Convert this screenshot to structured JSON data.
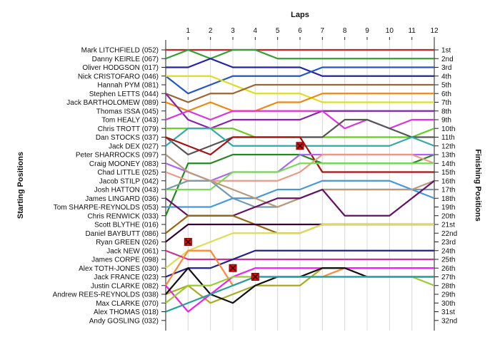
{
  "chart_data": {
    "type": "line",
    "title": "",
    "xlabel": "Laps",
    "ylabel_left": "Starting Positions",
    "ylabel_right": "Finishing Positions",
    "x": [
      1,
      2,
      3,
      4,
      5,
      6,
      7,
      8,
      9,
      10,
      11,
      12
    ],
    "xlim": [
      0,
      12
    ],
    "ylim": [
      1,
      32
    ],
    "y_inverted": true,
    "grid": true,
    "starting_order": [
      "Mark LITCHFIELD (052)",
      "Danny KEIRLE (067)",
      "Oliver HODGSON (017)",
      "Nick CRISTOFARO (046)",
      "Hannah PYM (081)",
      "Stephen LETTS (044)",
      "Jack BARTHOLOMEW (089)",
      "Thomas ISSA (045)",
      "Tom HEALY (043)",
      "Chris TROTT (079)",
      "Dan STOCKS (037)",
      "Jack DEX (027)",
      "Peter SHARROCKS (097)",
      "Craig MOONEY (083)",
      "Chad LITTLE (025)",
      "Jacob STILP (042)",
      "Josh HATTON (043)",
      "James LINGARD (036)",
      "Tom SHARPE-REYNOLDS (053)",
      "Chris RENWICK (033)",
      "Scott BLYTHE (016)",
      "Daniel BAYBUTT (086)",
      "Ryan GREEN (026)",
      "Jack NEW (061)",
      "James CORPE (098)",
      "Alex TOTH-JONES (030)",
      "Jack FRANCE (023)",
      "Justin CLARKE (082)",
      "Andrew REES-REYNOLDS (038)",
      "Max CLARKE (070)",
      "Alex THOMAS (018)",
      "Andy GOSLING (032)"
    ],
    "finishing_labels": [
      "1st",
      "2nd",
      "3rd",
      "4th",
      "5th",
      "6th",
      "7th",
      "8th",
      "9th",
      "10th",
      "11th",
      "12th",
      "13th",
      "14th",
      "15th",
      "16th",
      "17th",
      "18th",
      "19th",
      "20th",
      "21st",
      "22nd",
      "23rd",
      "24th",
      "25th",
      "26th",
      "27th",
      "28th",
      "29th",
      "30th",
      "31st",
      "32nd"
    ],
    "series": [
      {
        "color": "#cc2222",
        "positions": [
          1,
          1,
          1,
          1,
          1,
          1,
          1,
          1,
          1,
          1,
          1,
          1,
          1
        ]
      },
      {
        "color": "#33a033",
        "positions": [
          2,
          1,
          2,
          1,
          1,
          2,
          2,
          2,
          2,
          2,
          2,
          2,
          2
        ]
      },
      {
        "color": "#2222aa",
        "positions": [
          3,
          3,
          2,
          3,
          3,
          3,
          3,
          4,
          4,
          4,
          4,
          4,
          4
        ]
      },
      {
        "color": "#2255cc",
        "positions": [
          4,
          6,
          5,
          4,
          4,
          4,
          4,
          3,
          3,
          3,
          3,
          3,
          3
        ]
      },
      {
        "color": "#dddd22",
        "positions": [
          4,
          4,
          4,
          5,
          6,
          6,
          6,
          7,
          7,
          7,
          7,
          7,
          7
        ]
      },
      {
        "color": "#996633",
        "positions": [
          6,
          7,
          6,
          6,
          5,
          5,
          5,
          5,
          5,
          5,
          5,
          5,
          5
        ]
      },
      {
        "color": "#ee8811",
        "positions": [
          7,
          8,
          7,
          8,
          8,
          7,
          7,
          6,
          6,
          6,
          6,
          6,
          6
        ]
      },
      {
        "color": "#8822aa",
        "positions": [
          6,
          9,
          10,
          9,
          9,
          9,
          9,
          8,
          8,
          8,
          8,
          8,
          8
        ]
      },
      {
        "color": "#dd33dd",
        "positions": [
          9,
          8,
          9,
          8,
          8,
          8,
          8,
          8,
          10,
          9,
          10,
          9,
          9
        ]
      },
      {
        "color": "#66cc22",
        "positions": [
          10,
          10,
          10,
          10,
          11,
          11,
          11,
          11,
          11,
          11,
          11,
          11,
          10
        ]
      },
      {
        "color": "#555555",
        "positions": [
          11,
          13,
          12,
          11,
          11,
          11,
          11,
          11,
          9,
          9,
          10,
          11,
          11
        ]
      },
      {
        "color": "#33aaaa",
        "positions": [
          12,
          10,
          10,
          12,
          12,
          12,
          12,
          12,
          12,
          12,
          12,
          11,
          12
        ]
      },
      {
        "color": "#aa1111",
        "positions": [
          11,
          12,
          13,
          11,
          11,
          11,
          11,
          15,
          15,
          15,
          15,
          15,
          15
        ]
      },
      {
        "color": "#228822",
        "positions": [
          20,
          14,
          14,
          13,
          13,
          13,
          13,
          14,
          14,
          14,
          14,
          14,
          13
        ]
      },
      {
        "color": "#aa66ee",
        "positions": [
          14,
          15,
          16,
          15,
          15,
          15,
          13,
          13,
          13,
          13,
          13,
          13,
          13
        ]
      },
      {
        "color": "#ee9988",
        "positions": [
          15,
          16,
          16,
          16,
          16,
          16,
          15,
          13,
          13,
          13,
          13,
          13,
          14
        ]
      },
      {
        "color": "#77dd55",
        "positions": [
          17,
          17,
          17,
          15,
          15,
          15,
          14,
          14,
          14,
          14,
          14,
          14,
          14
        ]
      },
      {
        "color": "#7799aa",
        "positions": [
          17,
          16,
          16,
          18,
          19,
          19,
          18,
          17,
          17,
          17,
          17,
          17,
          17
        ]
      },
      {
        "color": "#4499dd",
        "positions": [
          19,
          19,
          19,
          18,
          18,
          17,
          17,
          16,
          16,
          16,
          16,
          17,
          18
        ]
      },
      {
        "color": "#bb9977",
        "positions": [
          13,
          15,
          16,
          17,
          18,
          19,
          18,
          17,
          17,
          17,
          17,
          17,
          16
        ]
      },
      {
        "color": "#661166",
        "positions": [
          18,
          20,
          20,
          20,
          19,
          18,
          18,
          17,
          20,
          20,
          20,
          18,
          16
        ]
      },
      {
        "color": "#996611",
        "positions": [
          22,
          20,
          20,
          20,
          21,
          22,
          22,
          21,
          21,
          21,
          21,
          21,
          21
        ]
      },
      {
        "color": "#330033",
        "positions": [
          23,
          21,
          21,
          21,
          21,
          21,
          21,
          21,
          21,
          21,
          21,
          21,
          21
        ]
      },
      {
        "color": "#dddd55",
        "positions": [
          26,
          24,
          23,
          22,
          22,
          22,
          22,
          21,
          21,
          21,
          21,
          21,
          21
        ]
      },
      {
        "color": "#cc3399",
        "positions": [
          24,
          25,
          25,
          25,
          25,
          25,
          25,
          25,
          25,
          25,
          25,
          25,
          25
        ]
      },
      {
        "color": "#222288",
        "positions": [
          27,
          26,
          26,
          25,
          24,
          24,
          24,
          24,
          24,
          24,
          24,
          24,
          24
        ]
      },
      {
        "color": "#ff8833",
        "positions": [
          28,
          24,
          24,
          28,
          27,
          27,
          27,
          27,
          26,
          26,
          26,
          26,
          26
        ]
      },
      {
        "color": "#aaaa22",
        "positions": [
          29,
          28,
          30,
          29,
          28,
          28,
          28,
          26,
          26,
          26,
          26,
          26,
          26
        ]
      },
      {
        "color": "#ee22ee",
        "positions": [
          28,
          31,
          29,
          27,
          26,
          26,
          26,
          26,
          26,
          26,
          26,
          26,
          26
        ]
      },
      {
        "color": "#111111",
        "positions": [
          29,
          26,
          29,
          30,
          28,
          27,
          27,
          26,
          26,
          27,
          27,
          27,
          27
        ]
      },
      {
        "color": "#99cc33",
        "positions": [
          30,
          28,
          28,
          27,
          27,
          27,
          27,
          27,
          27,
          27,
          27,
          27,
          28
        ]
      },
      {
        "color": "#22a0a0",
        "positions": [
          31,
          30,
          29,
          28,
          27,
          27,
          27,
          27,
          27,
          27,
          27,
          27,
          27
        ]
      }
    ],
    "retirements": [
      {
        "lap": 1,
        "position": 23
      },
      {
        "lap": 3,
        "position": 26
      },
      {
        "lap": 4,
        "position": 27
      },
      {
        "lap": 6,
        "position": 12
      }
    ]
  }
}
